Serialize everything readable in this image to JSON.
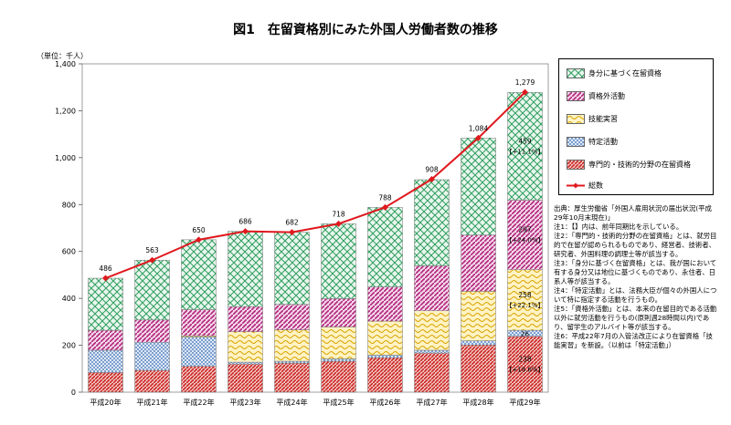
{
  "title": "図1　在留資格別にみた外国人労働者数の推移",
  "unit_label": "（単位：千人）",
  "legend": [
    {
      "label": "身分に基づく在留資格",
      "pattern": "cross",
      "color": "#2e9e5e"
    },
    {
      "label": "資格外活動",
      "pattern": "diag",
      "color": "#b0257a"
    },
    {
      "label": "技能実習",
      "pattern": "wave",
      "color": "#e6b800"
    },
    {
      "label": "特定活動",
      "pattern": "check",
      "color": "#3a6fb0"
    },
    {
      "label": "専門的・技術的分野の在留資格",
      "pattern": "diag2",
      "color": "#d42a2a"
    },
    {
      "label": "総数",
      "pattern": "line",
      "color": "#e0191e"
    }
  ],
  "notes": [
    "出典：厚生労働省「外国人雇用状況の届出状況(平成29年10月末現在)」",
    "注1：【】内は、前年同期比を示している。",
    "注2：「専門的・技術的分野の在留資格」とは、就労目的で在留が認められるものであり、経営者、技術者、研究者、外国料理の調理士等が該当する。",
    "注3：「身分に基づく在留資格」とは、我が国において有する身分又は地位に基づくものであり、永住者、日系人等が該当する。",
    "注4：「特定活動」とは、法務大臣が個々の外国人について特に指定する活動を行うもの。",
    "注5：「資格外活動」とは、本来の在留目的である活動以外に就労活動を行うもの(原則週28時間以内)であり、留学生のアルバイト等が該当する。",
    "注6：平成22年7月の入管法改正により在留資格「技能実習」を新設。（以前は「特定活動」）"
  ],
  "chart_data": {
    "type": "bar",
    "stacked": true,
    "categories": [
      "平成20年",
      "平成21年",
      "平成22年",
      "平成23年",
      "平成24年",
      "平成25年",
      "平成26年",
      "平成27年",
      "平成28年",
      "平成29年"
    ],
    "series": [
      {
        "name": "専門的・技術的分野の在留資格",
        "color": "#d42a2a",
        "pattern": "diag2",
        "values": [
          84,
          93,
          110,
          120,
          124,
          132,
          147,
          167,
          201,
          238
        ]
      },
      {
        "name": "特定活動",
        "color": "#3a6fb0",
        "pattern": "check",
        "values": [
          95,
          120,
          125,
          8,
          8,
          10,
          11,
          12,
          18,
          26
        ]
      },
      {
        "name": "技能実習",
        "color": "#e6b800",
        "pattern": "wave",
        "values": [
          0,
          0,
          5,
          130,
          134,
          136,
          145,
          168,
          211,
          258
        ]
      },
      {
        "name": "資格外活動",
        "color": "#b0257a",
        "pattern": "diag",
        "values": [
          85,
          95,
          112,
          107,
          108,
          121,
          146,
          192,
          240,
          297
        ]
      },
      {
        "name": "身分に基づく在留資格",
        "color": "#2e9e5e",
        "pattern": "cross",
        "values": [
          222,
          255,
          298,
          321,
          308,
          319,
          339,
          367,
          414,
          459
        ]
      }
    ],
    "line": {
      "name": "総数",
      "color": "#e0191e",
      "values": [
        486,
        563,
        650,
        686,
        682,
        718,
        788,
        908,
        1084,
        1279
      ]
    },
    "total_labels": [
      "486",
      "563",
      "650",
      "686",
      "682",
      "718",
      "788",
      "908",
      "1,084",
      "1,279"
    ],
    "segment_labels_last": [
      {
        "series": "身分に基づく在留資格",
        "value": "459",
        "change": "【+11.1%】"
      },
      {
        "series": "資格外活動",
        "value": "297",
        "change": "【+24.0%】"
      },
      {
        "series": "技能実習",
        "value": "258",
        "change": "【+22.1%】"
      },
      {
        "series": "特定活動",
        "value": "26"
      },
      {
        "series": "専門的・技術的分野の在留資格",
        "value": "238",
        "change": "【+18.6%】"
      }
    ],
    "ylim": [
      0,
      1400
    ],
    "yticks": [
      0,
      200,
      400,
      600,
      800,
      1000,
      1200,
      1400
    ],
    "ytick_labels": [
      "0",
      "200",
      "400",
      "600",
      "800",
      "1,000",
      "1,200",
      "1,400"
    ],
    "grid": false,
    "legend_position": "right"
  }
}
